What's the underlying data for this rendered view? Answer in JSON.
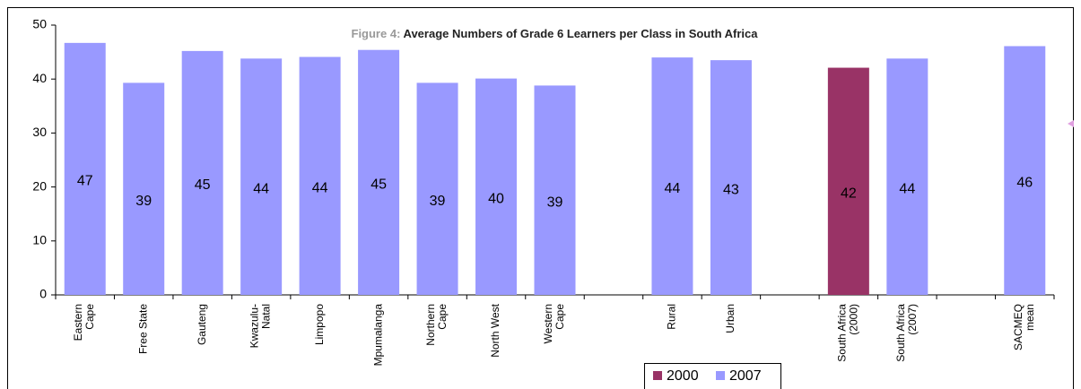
{
  "chart_data": {
    "type": "bar",
    "figure_label": "Figure 4:",
    "title": "Average Numbers of Grade 6 Learners per Class in South Africa",
    "categories": [
      "Eastern\nCape",
      "Free State",
      "Gauteng",
      "Kwazulu-\nNatal",
      "Limpopo",
      "Mpumalanga",
      "Northern\nCape",
      "North West",
      "Western\nCape",
      null,
      "Rural",
      "Urban",
      null,
      "South Africa\n(2000)",
      "South Africa\n(2007)",
      null,
      "SACMEQ\nmean"
    ],
    "series": [
      {
        "name": "2000",
        "color": "#993366",
        "values": [
          null,
          null,
          null,
          null,
          null,
          null,
          null,
          null,
          null,
          null,
          null,
          null,
          null,
          42.1,
          null,
          null,
          null
        ],
        "value_labels": [
          null,
          null,
          null,
          null,
          null,
          null,
          null,
          null,
          null,
          null,
          null,
          null,
          null,
          "42",
          null,
          null,
          null
        ]
      },
      {
        "name": "2007",
        "color": "#9999ff",
        "values": [
          46.7,
          39.3,
          45.2,
          43.8,
          44.1,
          45.4,
          39.3,
          40.1,
          38.8,
          null,
          44.0,
          43.5,
          null,
          null,
          43.8,
          null,
          46.1
        ],
        "value_labels": [
          "47",
          "39",
          "45",
          "44",
          "44",
          "45",
          "39",
          "40",
          "39",
          null,
          "44",
          "43",
          null,
          null,
          "44",
          null,
          "46"
        ]
      }
    ],
    "ylim": [
      0,
      50
    ],
    "yticks": [
      0,
      10,
      20,
      30,
      40,
      50
    ],
    "grid": false,
    "legend": "bottom"
  }
}
